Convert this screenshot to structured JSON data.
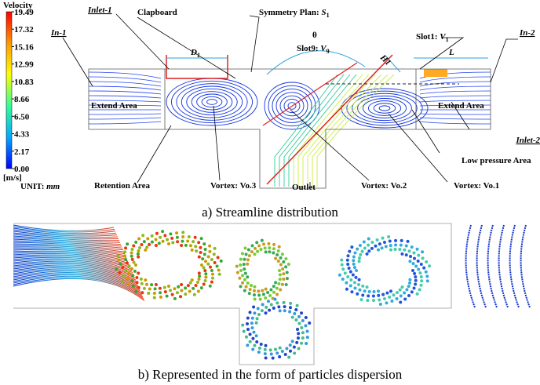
{
  "figure": {
    "colorbar": {
      "title": "Velocity",
      "ticks": [
        "19.49",
        "17.32",
        "15.16",
        "12.99",
        "10.83",
        "8.66",
        "6.50",
        "4.33",
        "2.17",
        "0.00"
      ],
      "unit": "[m/s]"
    },
    "unit_note": {
      "text": "UNIT: ",
      "unit": "mm"
    },
    "labels": {
      "in1": "In-1",
      "inlet1": "Inlet-1",
      "clapboard": "Clapboard",
      "symmetry_plan": {
        "text": "Symmetry Plan: ",
        "symbol": "S",
        "sub": "1"
      },
      "theta": "θ",
      "slot1": {
        "text": "Slot1: ",
        "symbol": "V",
        "sub": "1"
      },
      "slot9": {
        "text": "Slot9: ",
        "symbol": "V",
        "sub": "9"
      },
      "h1": "H1",
      "d1": {
        "symbol": "D",
        "sub": "1"
      },
      "l": "L",
      "in2": "In-2",
      "extend_left": "Extend Area",
      "extend_right": "Extend Area",
      "inlet2": "Inlet-2",
      "low_pressure": "Low pressure Area",
      "retention": "Retention Area",
      "vortex3": "Vortex: Vo.3",
      "outlet": "Outlet",
      "vortex2": "Vortex: Vo.2",
      "vortex1": "Vortex: Vo.1"
    },
    "captions": [
      "a) Streamline distribution",
      "b) Represented in the form of particles dispersion"
    ]
  }
}
